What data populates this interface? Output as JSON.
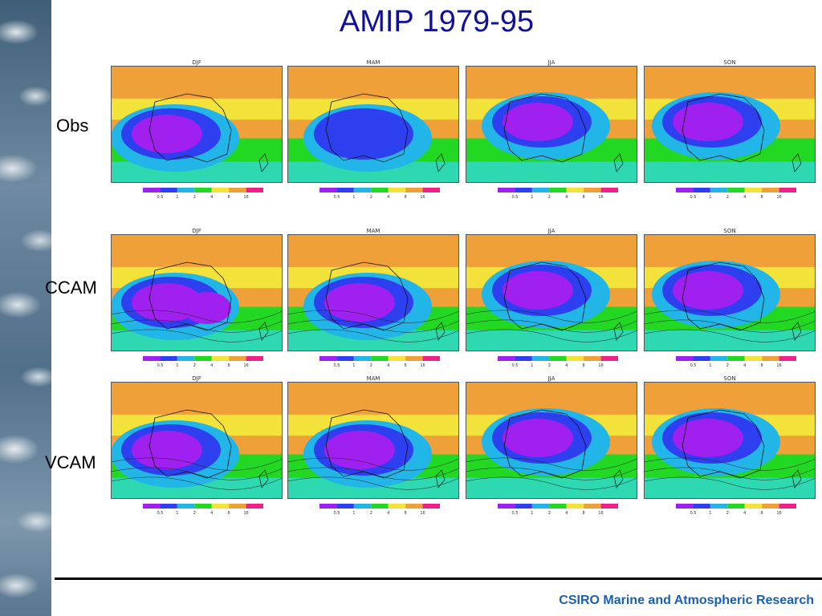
{
  "slide": {
    "title": "AMIP 1979-95",
    "footer": "CSIRO Marine and Atmospheric Research"
  },
  "rows": [
    {
      "label": "Obs"
    },
    {
      "label": "CCAM"
    },
    {
      "label": "VCAM"
    }
  ],
  "seasons": [
    "DJF",
    "MAM",
    "JJA",
    "SON"
  ],
  "colorbar": {
    "ticks": [
      "0.5",
      "1",
      "2",
      "4",
      "8",
      "16"
    ],
    "colors": [
      "#a020f0",
      "#2e3ff0",
      "#22b5e8",
      "#22d822",
      "#f2e23a",
      "#f0a038",
      "#f0208a"
    ]
  },
  "background_theme": "sky-clouds"
}
